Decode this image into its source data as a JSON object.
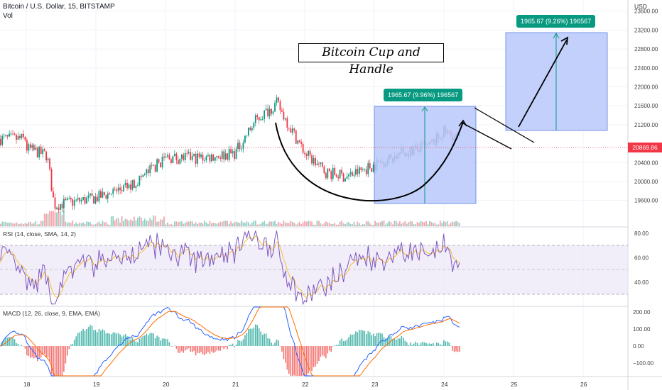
{
  "header": {
    "symbol_line": "Bitcoin / U.S. Dollar, 15, BITSTAMP",
    "volume_label": "Vol"
  },
  "price_axis": {
    "currency": "USD",
    "ticks": [
      "23600.00",
      "23200.00",
      "22800.00",
      "22400.00",
      "22000.00",
      "21600.00",
      "21200.00",
      "20400.00",
      "20000.00",
      "19600.00"
    ],
    "current_price": "20869.86"
  },
  "annotations": {
    "title": "Bitcoin Cup and Handle",
    "cup_measure": "1965.67 (9.96%) 196567",
    "target_measure": "1965.67 (9.26%) 196567"
  },
  "rsi": {
    "label": "RSI (14, close, SMA, 14, 2)",
    "ticks": [
      "80.00",
      "60.00",
      "40.00"
    ]
  },
  "macd": {
    "label": "MACD (12, 26, close, 9, EMA, EMA)",
    "ticks": [
      "200.00",
      "100.00",
      "0.00",
      "−100.00"
    ]
  },
  "time_axis": {
    "labels": [
      "18",
      "19",
      "20",
      "21",
      "22",
      "23",
      "24",
      "25",
      "26"
    ]
  },
  "colors": {
    "up": "#089981",
    "down": "#f23645",
    "rsi_line": "#7e57c2",
    "rsi_band": "#ede7f6",
    "macd_line": "#2962ff",
    "signal_line": "#ff6d00",
    "measure_fill": "#b8c8fb"
  },
  "chart_data": {
    "type": "candlestick",
    "symbol": "Bitcoin / U.S. Dollar",
    "interval": "15",
    "exchange": "BITSTAMP",
    "ylim": [
      19400,
      23700
    ],
    "approx_close_path": [
      {
        "day": "18",
        "price": 20700
      },
      {
        "day": "18.3",
        "price": 20550
      },
      {
        "day": "18.4",
        "price": 19500
      },
      {
        "day": "19",
        "price": 19650
      },
      {
        "day": "19.5",
        "price": 19900
      },
      {
        "day": "20",
        "price": 20500
      },
      {
        "day": "20.5",
        "price": 20500
      },
      {
        "day": "21",
        "price": 20600
      },
      {
        "day": "21.3",
        "price": 21300
      },
      {
        "day": "21.6",
        "price": 21650
      },
      {
        "day": "22",
        "price": 20600
      },
      {
        "day": "22.3",
        "price": 20200
      },
      {
        "day": "22.6",
        "price": 20100
      },
      {
        "day": "23",
        "price": 20350
      },
      {
        "day": "23.4",
        "price": 20600
      },
      {
        "day": "23.8",
        "price": 20750
      },
      {
        "day": "24",
        "price": 21050
      },
      {
        "day": "24.2",
        "price": 20900
      }
    ],
    "last_price": 20869.86
  }
}
